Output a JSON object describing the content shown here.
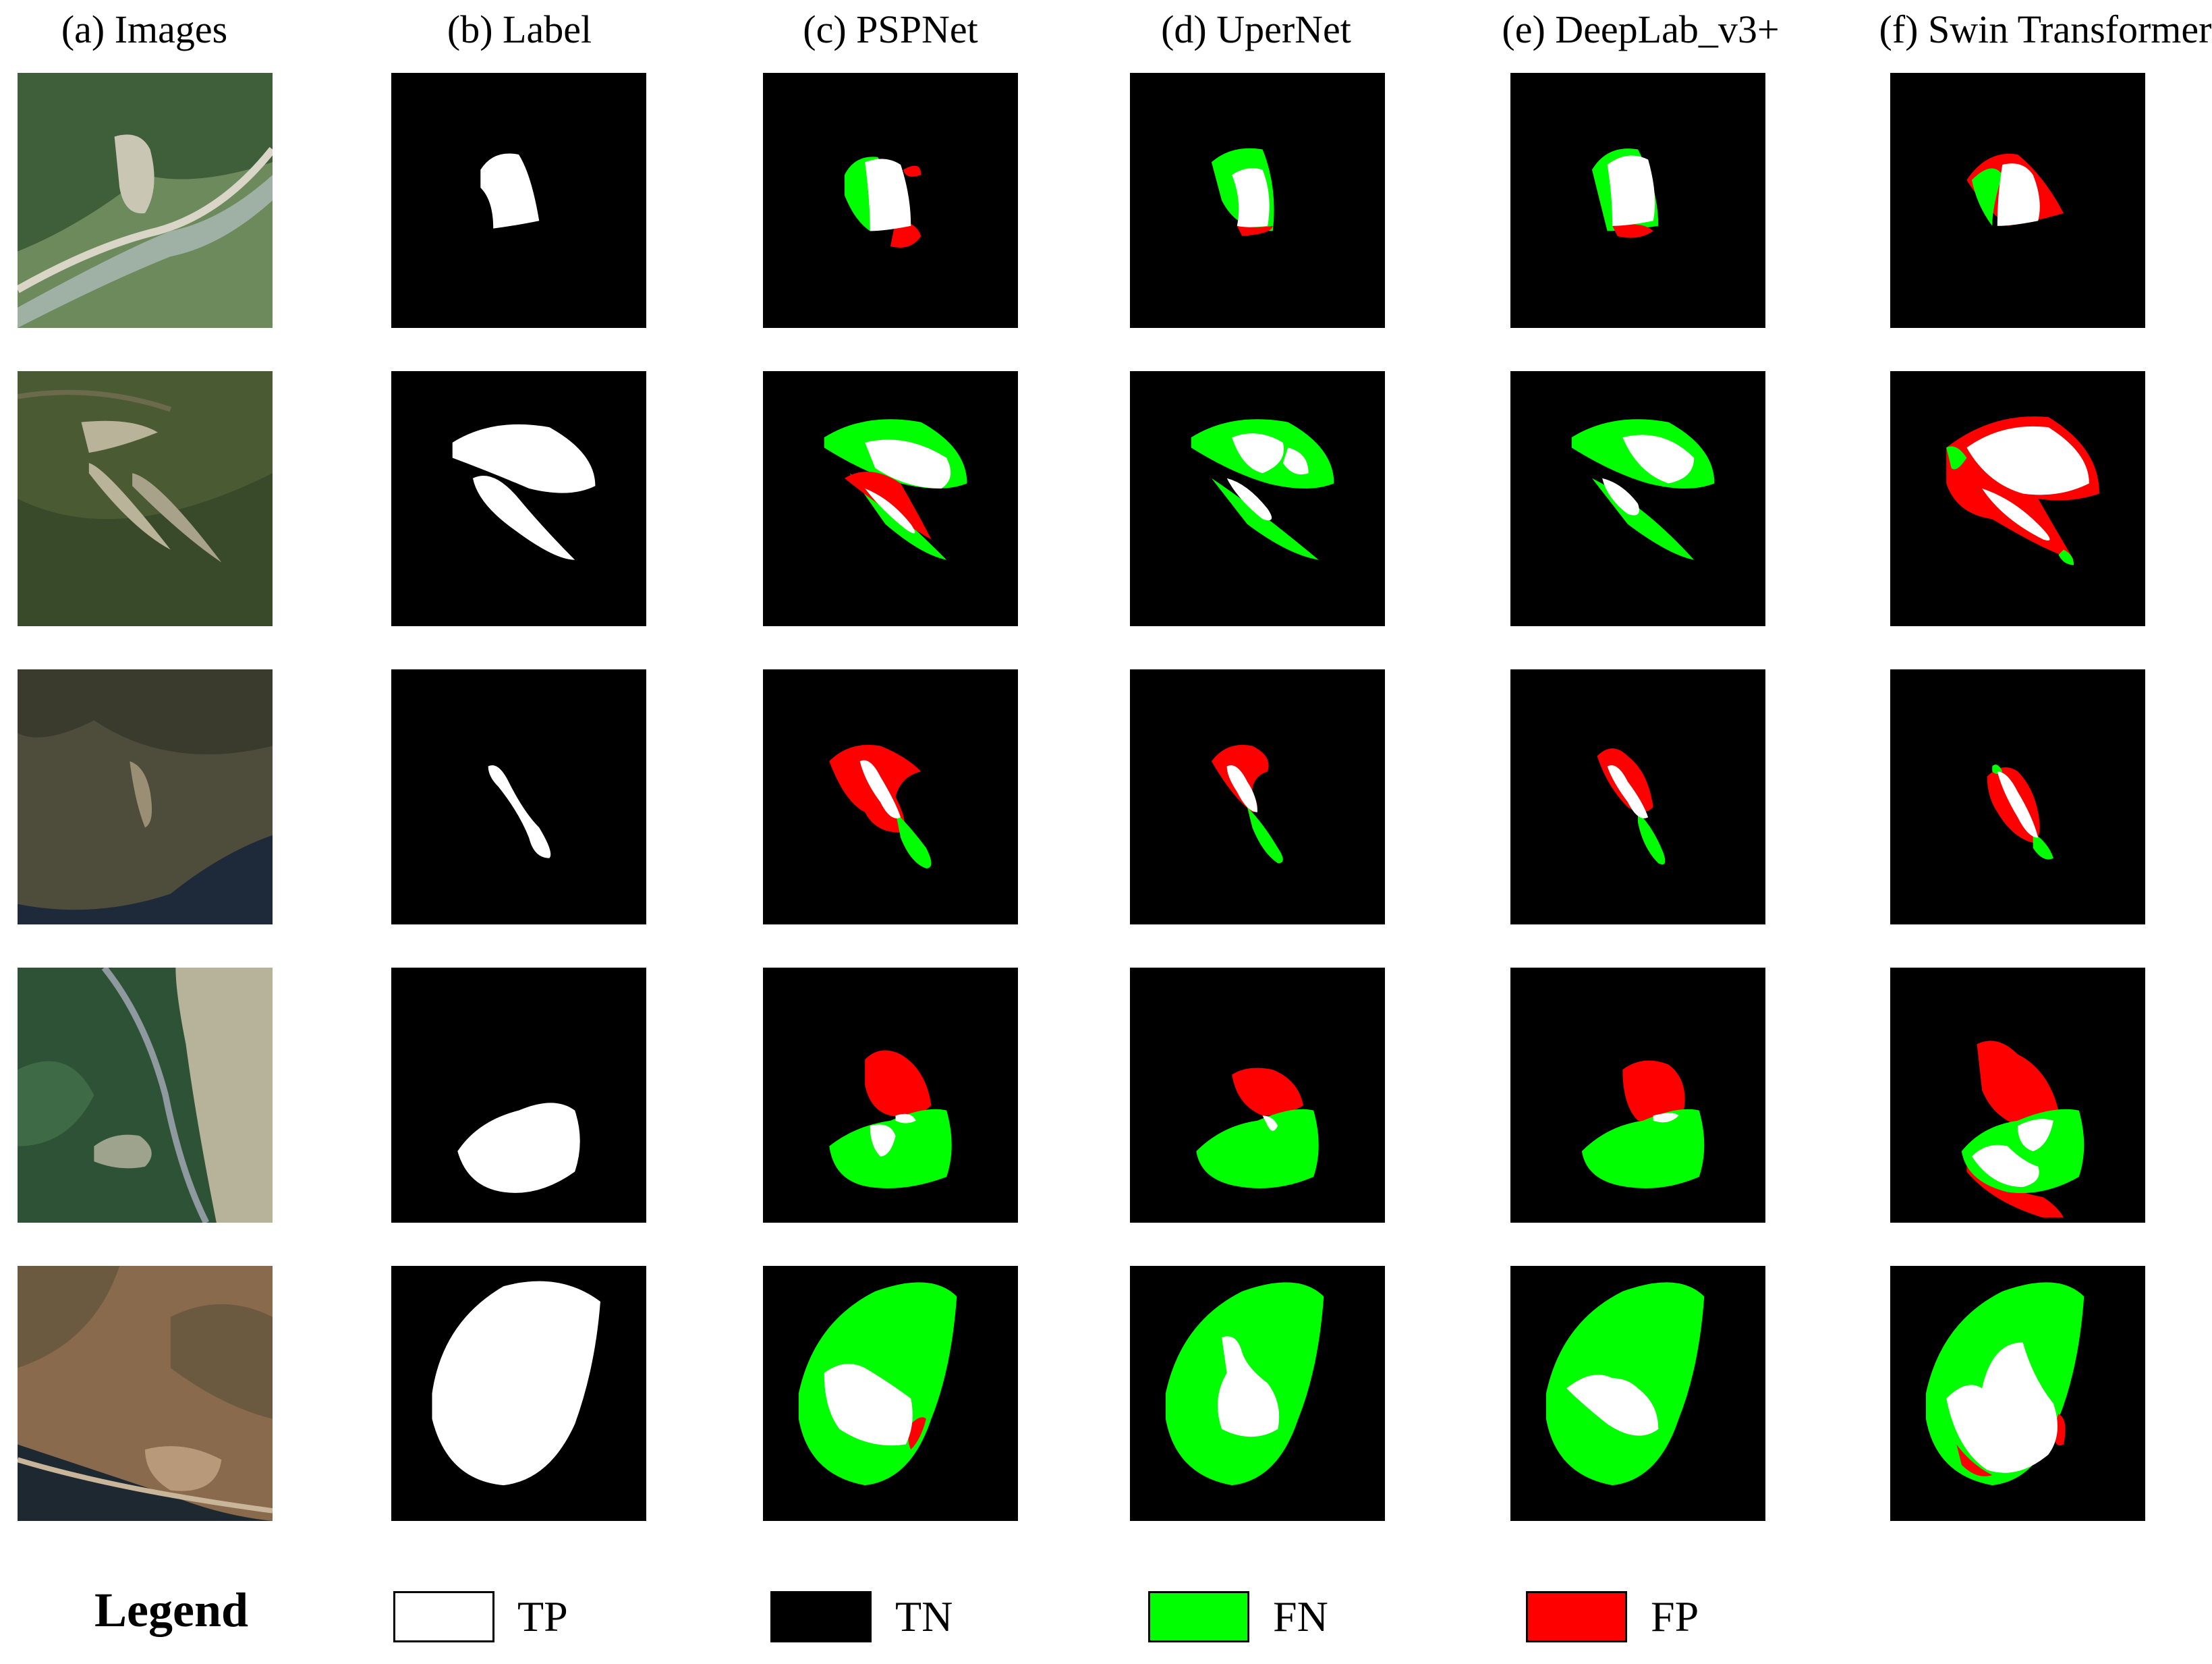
{
  "columns": [
    {
      "label": "(a) Images"
    },
    {
      "label": "(b) Label"
    },
    {
      "label": "(c) PSPNet"
    },
    {
      "label": "(d) UperNet"
    },
    {
      "label": "(e) DeepLab_v3+"
    },
    {
      "label": "(f) Swin Transformer"
    }
  ],
  "rows": [
    {
      "image_palette": [
        "#6d8a5c",
        "#3f5e3a",
        "#c9c6b4",
        "#9fb0a4"
      ]
    },
    {
      "image_palette": [
        "#4a5a33",
        "#394a2b",
        "#b9b39a",
        "#6b6a4a"
      ]
    },
    {
      "image_palette": [
        "#4e4d3b",
        "#3b3b2d",
        "#9a8e74",
        "#1e2a3a"
      ]
    },
    {
      "image_palette": [
        "#2e5236",
        "#3f6a46",
        "#b7b29a",
        "#8f9aa0"
      ]
    },
    {
      "image_palette": [
        "#8a6a4d",
        "#6b5a40",
        "#b89a7a",
        "#1d2830"
      ]
    }
  ],
  "colors": {
    "TP": "#ffffff",
    "TN": "#000000",
    "FN": "#00ff00",
    "FP": "#ff0000"
  },
  "legend": {
    "title": "Legend",
    "items": [
      {
        "key": "TP",
        "label": "TP"
      },
      {
        "key": "TN",
        "label": "TN"
      },
      {
        "key": "FN",
        "label": "FN"
      },
      {
        "key": "FP",
        "label": "FP"
      }
    ]
  }
}
